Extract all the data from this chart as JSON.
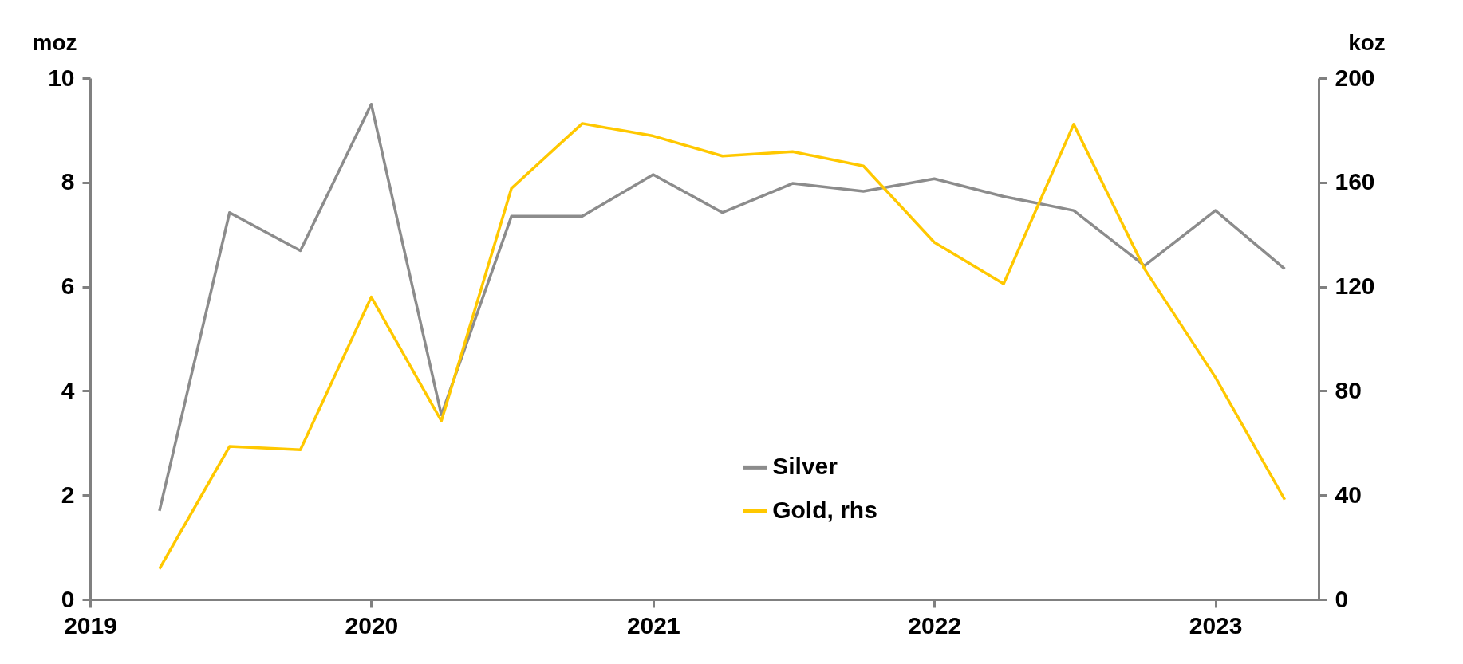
{
  "chart_data": {
    "type": "line",
    "ylabel": "moz",
    "y2label": "koz",
    "x": [
      "2019-04",
      "2019-07",
      "2019-10",
      "2020-01",
      "2020-04",
      "2020-07",
      "2020-10",
      "2021-01",
      "2021-04",
      "2021-07",
      "2021-10",
      "2022-01",
      "2022-04",
      "2022-07",
      "2022-10",
      "2023-01",
      "2023-04"
    ],
    "xlim": [
      "2019-01-01",
      "2023-05-15"
    ],
    "xticks": [
      "2019",
      "2020",
      "2021",
      "2022",
      "2023"
    ],
    "ylim": [
      0,
      10
    ],
    "yticks": [
      0,
      2,
      4,
      6,
      8,
      10
    ],
    "y2lim": [
      0,
      200
    ],
    "y2ticks": [
      0,
      40,
      80,
      120,
      160,
      200
    ],
    "series": [
      {
        "name": "Silver",
        "color": "#8c8c8c",
        "values": [
          1.7,
          7.42,
          6.69,
          9.5,
          3.54,
          7.35,
          7.35,
          8.15,
          7.42,
          7.98,
          7.83,
          8.07,
          7.73,
          7.46,
          6.4,
          7.46,
          6.34
        ]
      },
      {
        "name": "Gold, rhs",
        "color": "#ffc800",
        "axis": "y2",
        "values": [
          11.7,
          58.7,
          57.4,
          116,
          68.5,
          157.7,
          182.6,
          177.8,
          170.1,
          171.8,
          166.3,
          137.0,
          121.1,
          182.3,
          126.8,
          85.2,
          38.3
        ]
      }
    ],
    "legend": "bottom",
    "grid": false,
    "marker": "none",
    "line_style": "solid"
  }
}
